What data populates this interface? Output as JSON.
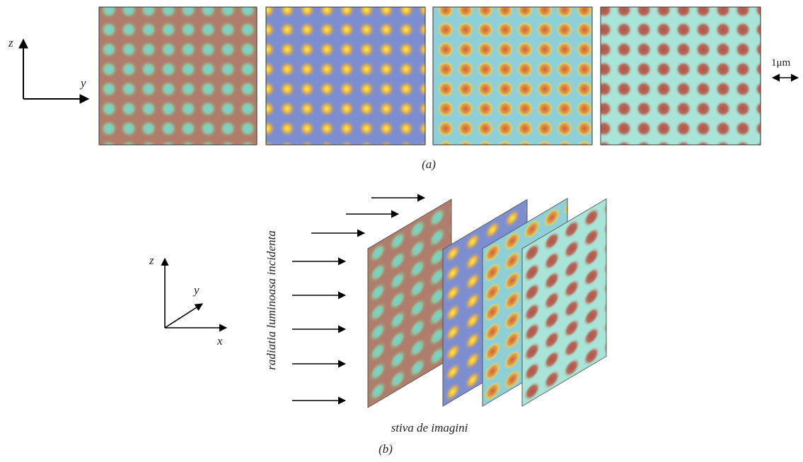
{
  "panel_a": {
    "axis_z": "z",
    "axis_y": "y",
    "scale": "1μm",
    "caption": "(a)"
  },
  "panel_b": {
    "axis_z": "z",
    "axis_y": "y",
    "axis_x": "x",
    "incident_label": "radiatia luminoasa incidenta",
    "stack_label": "stiva de imagini",
    "caption": "(b)"
  }
}
